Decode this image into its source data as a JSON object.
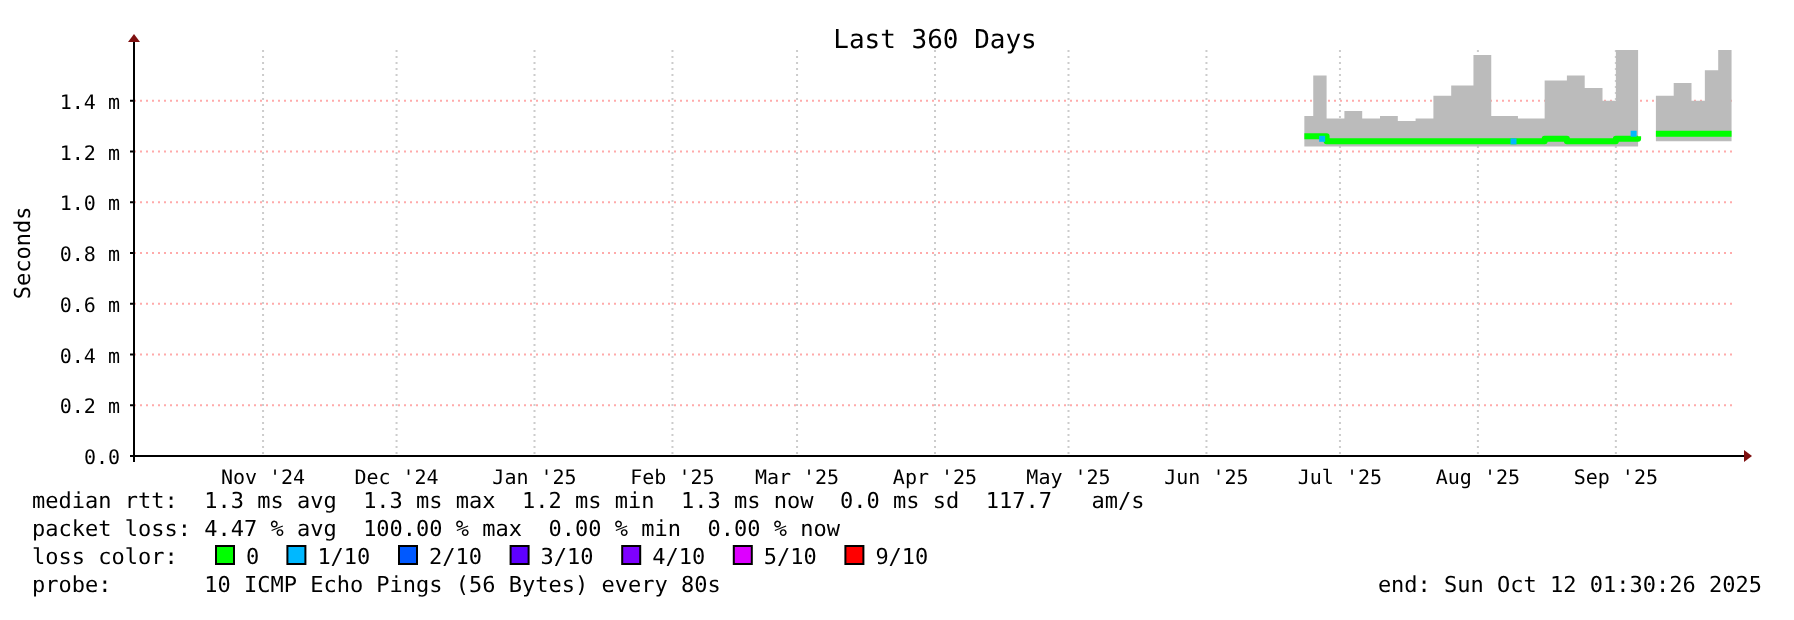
{
  "chart_data": {
    "type": "line",
    "title": "Last 360 Days",
    "ylabel": "Seconds",
    "xlim": [
      "2024-10-17",
      "2025-10-12"
    ],
    "xticks": [
      {
        "value": "2024-11-15",
        "label": "Nov '24"
      },
      {
        "value": "2024-12-15",
        "label": "Dec '24"
      },
      {
        "value": "2025-01-15",
        "label": "Jan '25"
      },
      {
        "value": "2025-02-15",
        "label": "Feb '25"
      },
      {
        "value": "2025-03-15",
        "label": "Mar '25"
      },
      {
        "value": "2025-04-15",
        "label": "Apr '25"
      },
      {
        "value": "2025-05-15",
        "label": "May '25"
      },
      {
        "value": "2025-06-15",
        "label": "Jun '25"
      },
      {
        "value": "2025-07-15",
        "label": "Jul '25"
      },
      {
        "value": "2025-08-15",
        "label": "Aug '25"
      },
      {
        "value": "2025-09-15",
        "label": "Sep '25"
      }
    ],
    "ylim": [
      0,
      1.6
    ],
    "yticks": [
      {
        "value": 0,
        "label": "0.0"
      },
      {
        "value": 0.2,
        "label": "0.2 m"
      },
      {
        "value": 0.4,
        "label": "0.4 m"
      },
      {
        "value": 0.6,
        "label": "0.6 m"
      },
      {
        "value": 0.8,
        "label": "0.8 m"
      },
      {
        "value": 1.0,
        "label": "1.0 m"
      },
      {
        "value": 1.2,
        "label": "1.2 m"
      },
      {
        "value": 1.4,
        "label": "1.4 m"
      }
    ],
    "grid": true,
    "legend": "bottom",
    "legend_title": "loss color:",
    "series": [
      {
        "name": "0",
        "color": "#00ff00",
        "x": [
          "2025-07-07",
          "2025-07-09",
          "2025-07-12",
          "2025-07-16",
          "2025-07-20",
          "2025-07-24",
          "2025-07-28",
          "2025-08-01",
          "2025-08-05",
          "2025-08-09",
          "2025-08-14",
          "2025-08-18",
          "2025-08-24",
          "2025-08-30",
          "2025-09-04",
          "2025-09-08",
          "2025-09-12",
          "2025-09-15",
          "2025-09-20",
          "2025-09-22",
          "2025-09-24",
          "2025-09-28",
          "2025-10-02",
          "2025-10-05",
          "2025-10-08",
          "2025-10-11"
        ],
        "values": [
          1.26,
          1.26,
          1.24,
          1.24,
          1.24,
          1.24,
          1.24,
          1.24,
          1.24,
          1.24,
          1.24,
          1.24,
          1.24,
          1.25,
          1.24,
          1.24,
          1.24,
          1.25,
          1.26,
          null,
          1.27,
          1.27,
          1.27,
          1.27,
          1.27,
          1.27
        ],
        "lower": [
          1.22,
          1.22,
          1.22,
          1.22,
          1.22,
          1.22,
          1.22,
          1.22,
          1.22,
          1.22,
          1.22,
          1.22,
          1.22,
          1.22,
          1.22,
          1.22,
          1.22,
          1.22,
          1.22,
          null,
          1.24,
          1.24,
          1.24,
          1.24,
          1.24,
          1.24
        ],
        "upper": [
          1.34,
          1.5,
          1.33,
          1.36,
          1.33,
          1.34,
          1.32,
          1.33,
          1.42,
          1.46,
          1.58,
          1.34,
          1.33,
          1.48,
          1.5,
          1.45,
          1.4,
          1.6,
          1.6,
          null,
          1.42,
          1.47,
          1.4,
          1.52,
          1.6,
          1.6
        ]
      },
      {
        "name": "1/10",
        "color": "#00b8ff",
        "type": "scatter",
        "x": [
          "2025-07-11",
          "2025-08-23",
          "2025-09-19"
        ],
        "values": [
          1.25,
          1.24,
          1.27
        ]
      },
      {
        "name": "2/10",
        "color": "#0059ff",
        "type": "scatter"
      },
      {
        "name": "3/10",
        "color": "#5e00ff",
        "type": "scatter"
      },
      {
        "name": "4/10",
        "color": "#7e00ff",
        "type": "scatter"
      },
      {
        "name": "5/10",
        "color": "#dd00ff",
        "type": "scatter"
      },
      {
        "name": "9/10",
        "color": "#ff0000",
        "type": "scatter"
      }
    ],
    "annotations": [
      "median rtt:  1.3 ms avg  1.3 ms max  1.2 ms min  1.3 ms now  0.0 ms sd  117.7   am/s",
      "packet loss: 4.47 % avg  100.00 % max  0.00 % min  0.00 % now",
      "probe:       10 ICMP Echo Pings (56 Bytes) every 80s",
      "end: Sun Oct 12 01:30:26 2025"
    ]
  }
}
